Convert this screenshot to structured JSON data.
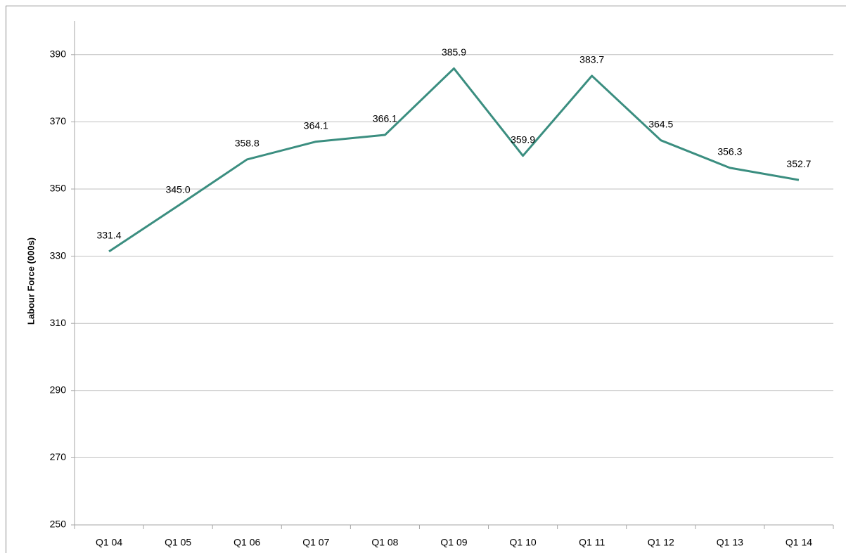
{
  "chart_data": {
    "type": "line",
    "y_label": "Labour Force (000s)",
    "categories": [
      "Q1 04",
      "Q1 05",
      "Q1 06",
      "Q1 07",
      "Q1 08",
      "Q1 09",
      "Q1 10",
      "Q1 11",
      "Q1 12",
      "Q1 13",
      "Q1 14"
    ],
    "values": [
      331.4,
      345,
      358.8,
      364.1,
      366.1,
      385.9,
      359.9,
      383.7,
      364.5,
      356.3,
      352.7
    ],
    "value_labels": [
      "331.4",
      "345.0",
      "358.8",
      "364.1",
      "366.1",
      "385.9",
      "359.9",
      "383.7",
      "364.5",
      "356.3",
      "352.7"
    ],
    "color": "#3b8e80",
    "ylim": [
      250,
      400
    ],
    "yticks": [
      250,
      270,
      290,
      310,
      330,
      350,
      370,
      390
    ],
    "grid": true
  }
}
